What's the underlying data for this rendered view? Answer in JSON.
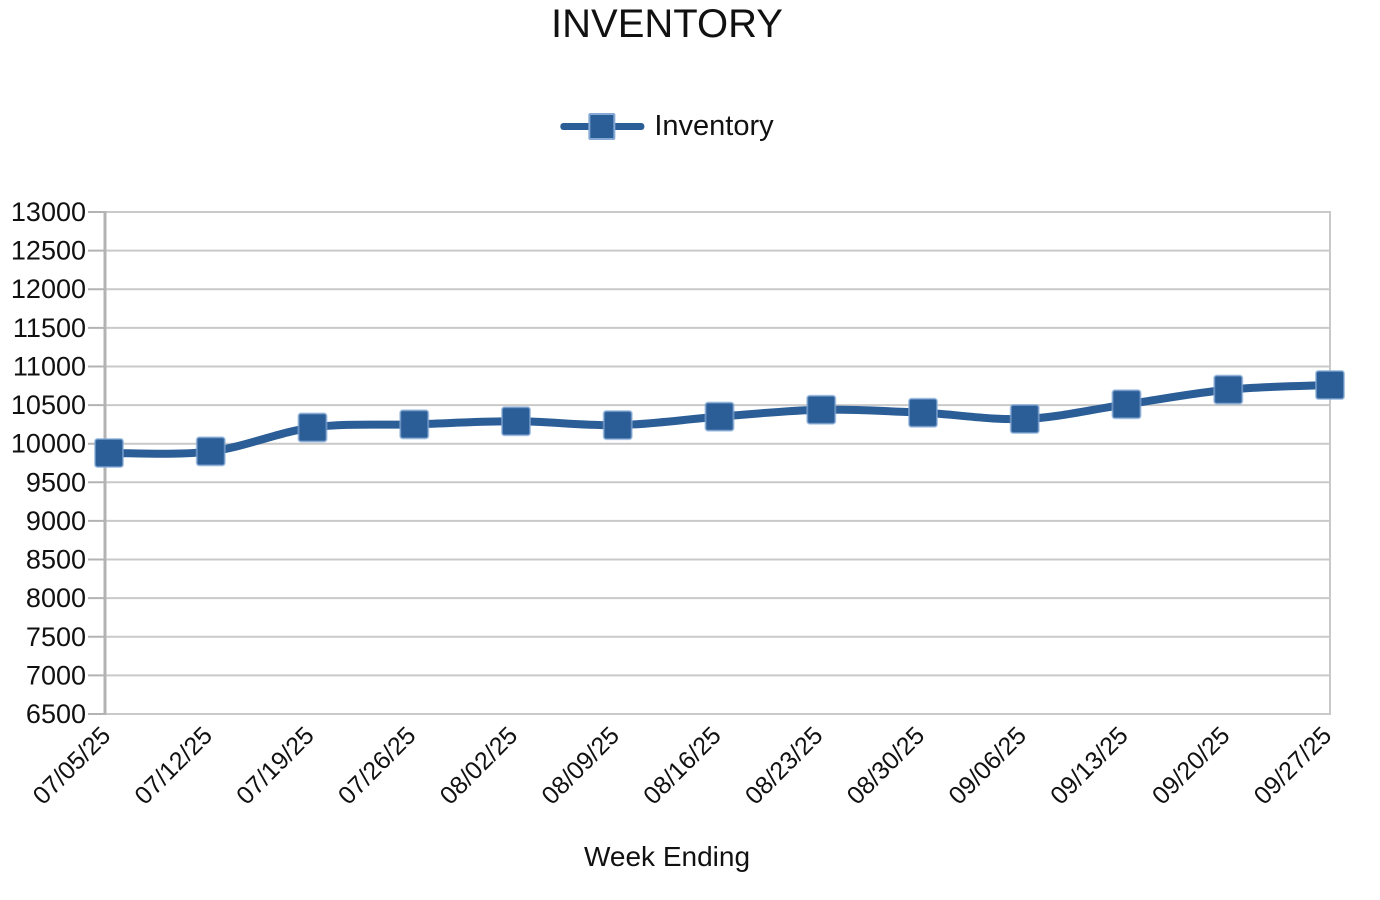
{
  "chart_data": {
    "type": "line",
    "title": "INVENTORY",
    "xlabel": "Week Ending",
    "ylabel": "",
    "legend_position": "top",
    "categories": [
      "07/05/25",
      "07/12/25",
      "07/19/25",
      "07/26/25",
      "08/02/25",
      "08/09/25",
      "08/16/25",
      "08/23/25",
      "08/30/25",
      "09/06/25",
      "09/13/25",
      "09/20/25",
      "09/27/25"
    ],
    "series": [
      {
        "name": "Inventory",
        "values": [
          9880,
          9900,
          10210,
          10250,
          10290,
          10240,
          10350,
          10440,
          10400,
          10320,
          10510,
          10700,
          10760
        ]
      }
    ],
    "ylim": [
      6500,
      13000
    ],
    "ytick_step": 500,
    "y_ticks": [
      13000,
      12500,
      12000,
      11500,
      11000,
      10500,
      10000,
      9500,
      9000,
      8500,
      8000,
      7500,
      7000,
      6500
    ],
    "grid": "horizontal-only",
    "line_smoothing": true,
    "marker_shape": "square",
    "colors": {
      "series": "#2b5d97",
      "marker_edge": "#84aad5",
      "gridline": "#c9c9c9",
      "axis": "#b3b3b3",
      "text": "#111111",
      "background": "#ffffff"
    }
  }
}
